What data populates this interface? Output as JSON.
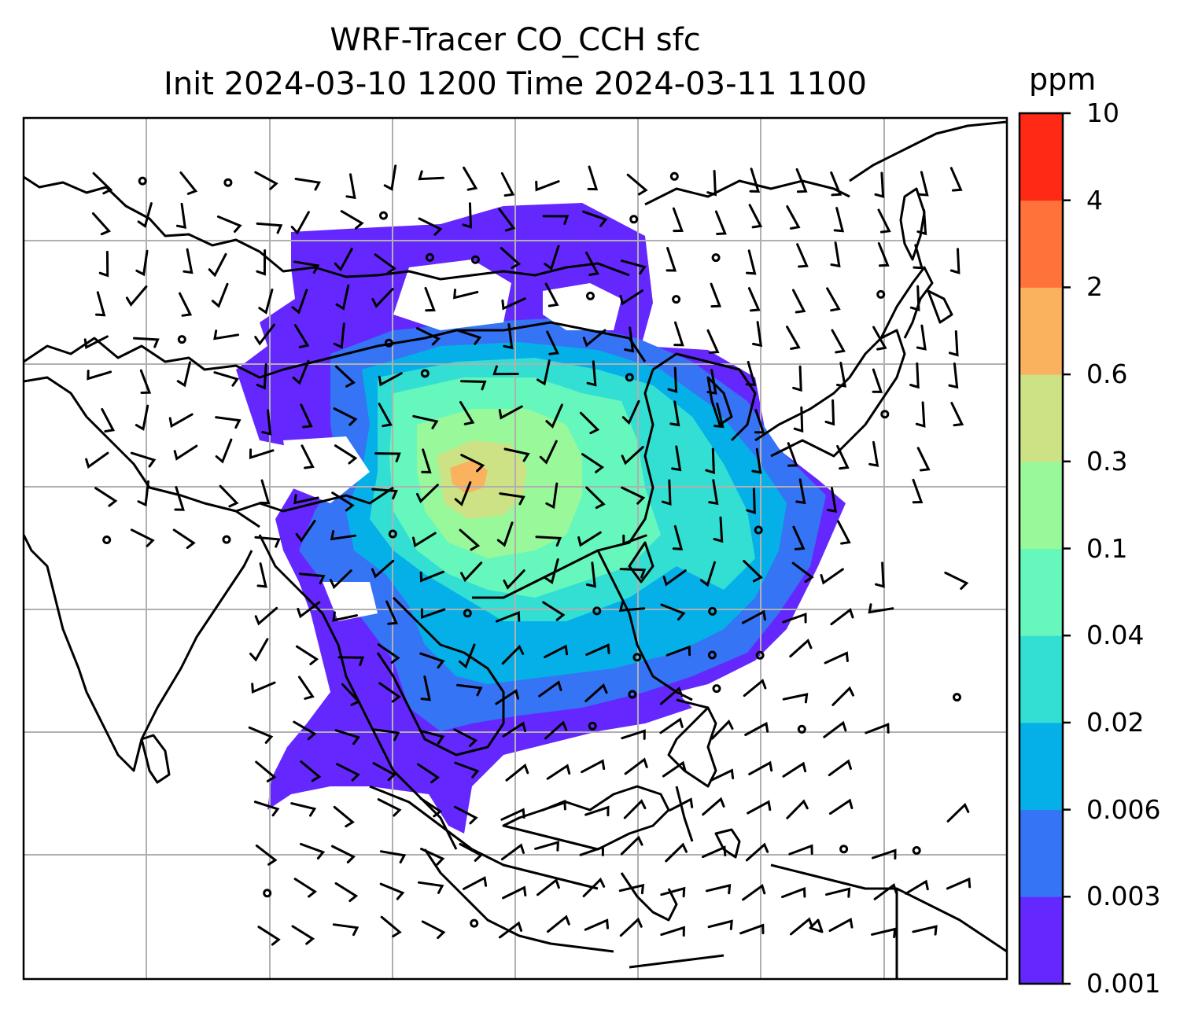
{
  "title": {
    "line1": "WRF-Tracer CO_CCH sfc",
    "line2": "Init 2024-03-10 1200 Time 2024-03-11 1100"
  },
  "colorbar": {
    "unit": "ppm",
    "levels": [
      "0.001",
      "0.003",
      "0.006",
      "0.02",
      "0.04",
      "0.1",
      "0.3",
      "0.6",
      "2",
      "4",
      "10"
    ],
    "colors": [
      "#6428ff",
      "#3574f5",
      "#05b0e8",
      "#33dfd2",
      "#66f7bd",
      "#98f89a",
      "#cde285",
      "#fbb25e",
      "#ff733b",
      "#ff2916"
    ]
  },
  "map": {
    "field": "CO_CCH surface concentration",
    "wind_barbs": true,
    "gridlines": true,
    "coastlines": true,
    "region": "East and Southeast Asia",
    "max_concentration_region": "Sichuan Basin",
    "max_level": "0.6"
  }
}
